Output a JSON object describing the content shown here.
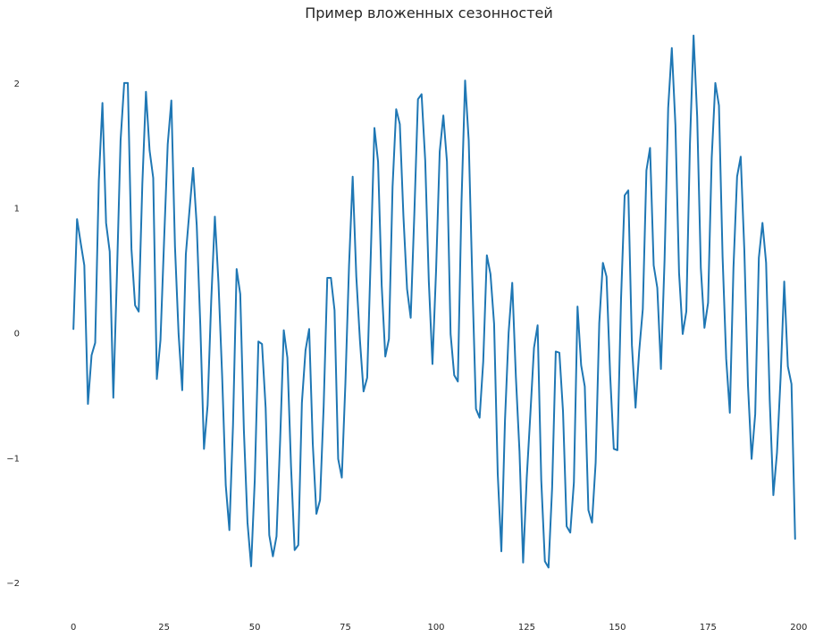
{
  "chart_data": {
    "type": "line",
    "title": "Пример вложенных сезонностей",
    "xlabel": "",
    "ylabel": "",
    "xlim": [
      -3,
      203
    ],
    "ylim": [
      -2.2,
      2.45
    ],
    "grid": false,
    "x_ticks": [
      0,
      25,
      50,
      75,
      100,
      125,
      150,
      175,
      200
    ],
    "x_tick_labels": [
      "0",
      "25",
      "50",
      "75",
      "100",
      "125",
      "150",
      "175",
      "200"
    ],
    "y_ticks": [
      -2,
      -1,
      0,
      1,
      2
    ],
    "y_tick_labels": [
      "−2",
      "−1",
      "0",
      "1",
      "2"
    ],
    "series": [
      {
        "color": "#1f77b4",
        "x_start": 0,
        "x_step": 1,
        "values": [
          0.03,
          0.91,
          0.72,
          0.54,
          -0.57,
          -0.18,
          -0.08,
          1.22,
          1.84,
          0.88,
          0.65,
          -0.52,
          0.47,
          1.54,
          2.0,
          2.0,
          0.67,
          0.22,
          0.17,
          1.19,
          1.93,
          1.46,
          1.24,
          -0.37,
          -0.06,
          0.74,
          1.51,
          1.86,
          0.69,
          -0.01,
          -0.46,
          0.63,
          0.98,
          1.32,
          0.86,
          0.05,
          -0.93,
          -0.58,
          0.26,
          0.93,
          0.4,
          -0.34,
          -1.22,
          -1.58,
          -0.74,
          0.51,
          0.31,
          -0.78,
          -1.52,
          -1.87,
          -1.18,
          -0.07,
          -0.09,
          -0.6,
          -1.62,
          -1.79,
          -1.63,
          -0.86,
          0.02,
          -0.2,
          -1.07,
          -1.74,
          -1.7,
          -0.56,
          -0.14,
          0.03,
          -0.89,
          -1.45,
          -1.34,
          -0.59,
          0.44,
          0.44,
          0.18,
          -1.01,
          -1.16,
          -0.4,
          0.54,
          1.25,
          0.45,
          -0.06,
          -0.47,
          -0.36,
          0.63,
          1.64,
          1.37,
          0.38,
          -0.19,
          -0.05,
          1.17,
          1.79,
          1.67,
          0.93,
          0.35,
          0.12,
          0.95,
          1.87,
          1.91,
          1.38,
          0.41,
          -0.25,
          0.5,
          1.45,
          1.74,
          1.37,
          -0.01,
          -0.34,
          -0.39,
          1.04,
          2.02,
          1.54,
          0.41,
          -0.61,
          -0.68,
          -0.23,
          0.62,
          0.47,
          0.07,
          -1.13,
          -1.75,
          -0.7,
          0.0,
          0.4,
          -0.35,
          -0.95,
          -1.84,
          -1.16,
          -0.65,
          -0.12,
          0.06,
          -1.18,
          -1.83,
          -1.88,
          -1.24,
          -0.15,
          -0.16,
          -0.63,
          -1.55,
          -1.6,
          -1.2,
          0.21,
          -0.26,
          -0.43,
          -1.42,
          -1.52,
          -1.04,
          0.08,
          0.56,
          0.45,
          -0.34,
          -0.93,
          -0.94,
          0.27,
          1.1,
          1.14,
          -0.1,
          -0.6,
          -0.15,
          0.19,
          1.3,
          1.48,
          0.54,
          0.36,
          -0.29,
          0.58,
          1.8,
          2.28,
          1.66,
          0.48,
          -0.01,
          0.17,
          1.51,
          2.38,
          1.73,
          0.52,
          0.04,
          0.24,
          1.4,
          2.0,
          1.82,
          0.61,
          -0.21,
          -0.64,
          0.52,
          1.25,
          1.41,
          0.66,
          -0.42,
          -1.01,
          -0.65,
          0.6,
          0.88,
          0.56,
          -0.54,
          -1.3,
          -0.96,
          -0.36,
          0.41,
          -0.27,
          -0.41,
          -1.65
        ]
      }
    ]
  }
}
